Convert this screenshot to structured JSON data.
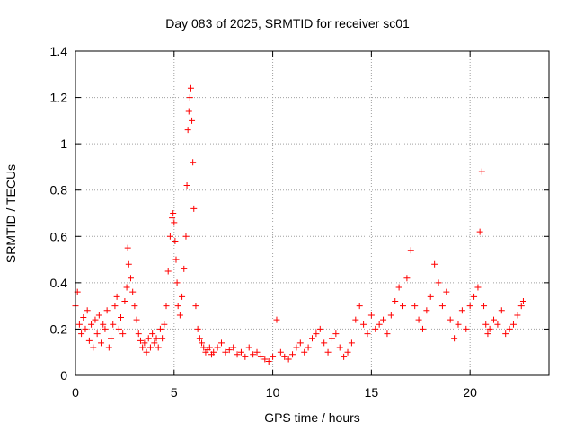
{
  "chart_data": {
    "type": "scatter",
    "title": "Day 083 of 2025, SRMTID for receiver sc01",
    "xlabel": "GPS time / hours",
    "ylabel": "SRMTID / TECUs",
    "xlim": [
      0,
      24
    ],
    "ylim": [
      0,
      1.4
    ],
    "x_ticks": [
      0,
      5,
      10,
      15,
      20
    ],
    "y_ticks": [
      0,
      0.2,
      0.4,
      0.6,
      0.8,
      1,
      1.2,
      1.4
    ],
    "x_tick_labels": [
      "0",
      "5",
      "10",
      "15",
      "20"
    ],
    "y_tick_labels": [
      "0",
      "0.2",
      "0.4",
      "0.6",
      "0.8",
      "1",
      "1.2",
      "1.4"
    ],
    "grid": true,
    "marker": "+",
    "color": "#ff0000",
    "series": [
      {
        "name": "SRMTID",
        "x": [
          0.0,
          0.1,
          0.2,
          0.3,
          0.4,
          0.5,
          0.6,
          0.7,
          0.8,
          0.9,
          1.0,
          1.1,
          1.2,
          1.3,
          1.4,
          1.5,
          1.6,
          1.7,
          1.8,
          1.9,
          2.0,
          2.1,
          2.2,
          2.3,
          2.4,
          2.5,
          2.6,
          2.65,
          2.7,
          2.8,
          2.9,
          3.0,
          3.1,
          3.2,
          3.3,
          3.4,
          3.5,
          3.6,
          3.7,
          3.8,
          3.9,
          4.0,
          4.1,
          4.2,
          4.3,
          4.4,
          4.5,
          4.6,
          4.7,
          4.8,
          4.9,
          4.95,
          5.0,
          5.05,
          5.1,
          5.15,
          5.2,
          5.3,
          5.4,
          5.5,
          5.6,
          5.65,
          5.7,
          5.75,
          5.8,
          5.85,
          5.9,
          5.95,
          6.0,
          6.1,
          6.2,
          6.3,
          6.4,
          6.5,
          6.6,
          6.7,
          6.8,
          6.9,
          7.0,
          7.2,
          7.4,
          7.6,
          7.8,
          8.0,
          8.2,
          8.4,
          8.6,
          8.8,
          9.0,
          9.2,
          9.4,
          9.6,
          9.8,
          10.0,
          10.2,
          10.4,
          10.6,
          10.8,
          11.0,
          11.2,
          11.4,
          11.6,
          11.8,
          12.0,
          12.2,
          12.4,
          12.6,
          12.8,
          13.0,
          13.2,
          13.4,
          13.6,
          13.8,
          14.0,
          14.2,
          14.4,
          14.6,
          14.8,
          15.0,
          15.2,
          15.4,
          15.6,
          15.8,
          16.0,
          16.2,
          16.4,
          16.6,
          16.8,
          17.0,
          17.2,
          17.4,
          17.6,
          17.8,
          18.0,
          18.2,
          18.4,
          18.6,
          18.8,
          19.0,
          19.2,
          19.4,
          19.6,
          19.8,
          20.0,
          20.2,
          20.4,
          20.5,
          20.6,
          20.7,
          20.8,
          20.9,
          21.0,
          21.2,
          21.4,
          21.6,
          21.8,
          22.0,
          22.2,
          22.4,
          22.6,
          22.7
        ],
        "y": [
          0.3,
          0.36,
          0.22,
          0.18,
          0.25,
          0.2,
          0.28,
          0.15,
          0.22,
          0.12,
          0.24,
          0.18,
          0.26,
          0.14,
          0.22,
          0.2,
          0.28,
          0.12,
          0.16,
          0.22,
          0.3,
          0.34,
          0.2,
          0.25,
          0.18,
          0.32,
          0.38,
          0.55,
          0.48,
          0.42,
          0.36,
          0.3,
          0.24,
          0.18,
          0.15,
          0.12,
          0.14,
          0.1,
          0.16,
          0.12,
          0.18,
          0.14,
          0.16,
          0.12,
          0.2,
          0.16,
          0.22,
          0.3,
          0.45,
          0.6,
          0.68,
          0.7,
          0.66,
          0.58,
          0.5,
          0.4,
          0.3,
          0.26,
          0.34,
          0.46,
          0.6,
          0.82,
          1.06,
          1.14,
          1.2,
          1.24,
          1.1,
          0.92,
          0.72,
          0.3,
          0.2,
          0.16,
          0.14,
          0.12,
          0.1,
          0.11,
          0.12,
          0.09,
          0.1,
          0.12,
          0.14,
          0.1,
          0.11,
          0.12,
          0.09,
          0.1,
          0.08,
          0.12,
          0.09,
          0.1,
          0.08,
          0.07,
          0.06,
          0.08,
          0.24,
          0.1,
          0.08,
          0.07,
          0.09,
          0.12,
          0.14,
          0.1,
          0.12,
          0.16,
          0.18,
          0.2,
          0.14,
          0.1,
          0.16,
          0.18,
          0.12,
          0.08,
          0.1,
          0.14,
          0.24,
          0.3,
          0.22,
          0.18,
          0.26,
          0.2,
          0.22,
          0.24,
          0.18,
          0.26,
          0.32,
          0.38,
          0.3,
          0.42,
          0.54,
          0.3,
          0.24,
          0.2,
          0.28,
          0.34,
          0.48,
          0.4,
          0.3,
          0.36,
          0.24,
          0.16,
          0.22,
          0.28,
          0.2,
          0.3,
          0.34,
          0.38,
          0.62,
          0.88,
          0.3,
          0.22,
          0.18,
          0.2,
          0.24,
          0.22,
          0.28,
          0.18,
          0.2,
          0.22,
          0.26,
          0.3,
          0.32
        ]
      }
    ]
  }
}
